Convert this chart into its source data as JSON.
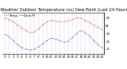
{
  "title": "Milwaukee Weather Outdoor Temperature (vs) Dew Point (Last 24 Hours)",
  "temp_color": "#cc0000",
  "dew_color": "#0000cc",
  "background": "#ffffff",
  "ylim": [
    5,
    58
  ],
  "ytick_vals": [
    11,
    21,
    31,
    41,
    51
  ],
  "ytick_labels": [
    "11",
    "21",
    "31",
    "41",
    "51"
  ],
  "x_labels": [
    "0",
    "1",
    "2",
    "3",
    "4",
    "5",
    "6",
    "7",
    "8",
    "9",
    "10",
    "11",
    "12",
    "13",
    "14",
    "15",
    "16",
    "17",
    "18",
    "19",
    "20",
    "21",
    "22",
    "23"
  ],
  "temp_values": [
    51,
    49,
    46,
    42,
    38,
    35,
    32,
    33,
    37,
    42,
    46,
    48,
    47,
    46,
    46,
    47,
    49,
    51,
    51,
    48,
    45,
    42,
    39,
    36
  ],
  "dew_values": [
    30,
    27,
    22,
    17,
    13,
    11,
    10,
    11,
    14,
    18,
    22,
    25,
    24,
    22,
    20,
    21,
    26,
    31,
    35,
    32,
    28,
    22,
    17,
    13
  ],
  "title_fontsize": 3.8,
  "tick_fontsize": 3.0,
  "legend_temp_label": "Temp",
  "legend_dew_label": "Dew Pt",
  "legend_fontsize": 3.0
}
